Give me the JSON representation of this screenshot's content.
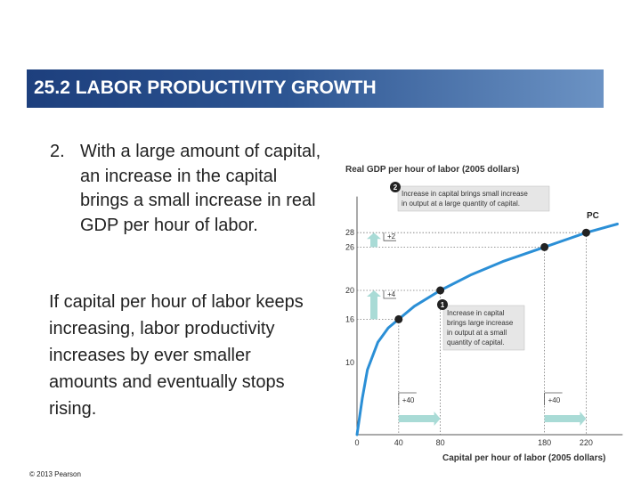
{
  "header": {
    "title": "25.2  LABOR PRODUCTIVITY GROWTH"
  },
  "main": {
    "point_number": "2.",
    "point_text": "With a large amount of capital, an increase in the capital brings a small increase in real GDP per hour of labor.",
    "paragraph": "If capital per hour of labor keeps increasing, labor productivity increases by ever smaller amounts and eventually stops rising."
  },
  "footer": {
    "copyright": "© 2013 Pearson"
  },
  "chart_data": {
    "type": "line",
    "ylabel": "Real GDP per hour of labor (2005 dollars)",
    "xlabel": "Capital per hour of labor (2005 dollars)",
    "x_ticks": [
      "0",
      "40",
      "80",
      "180",
      "220"
    ],
    "y_ticks": [
      "10",
      "16",
      "20",
      "26",
      "28"
    ],
    "xlim": [
      0,
      255
    ],
    "ylim": [
      0,
      34
    ],
    "series": [
      {
        "name": "PC",
        "x": [
          0,
          5,
          10,
          20,
          30,
          40,
          55,
          80,
          110,
          140,
          180,
          220,
          250
        ],
        "y": [
          0,
          5,
          9,
          12.8,
          14.8,
          16,
          17.8,
          20,
          22.2,
          24,
          26,
          28,
          29.2
        ]
      }
    ],
    "highlight_points": [
      {
        "x": 40,
        "y": 16
      },
      {
        "x": 80,
        "y": 20
      },
      {
        "x": 180,
        "y": 26
      },
      {
        "x": 220,
        "y": 28
      }
    ],
    "markers": [
      {
        "number": "1",
        "text": [
          "Increase in capital",
          "brings large increase",
          "in output at a small",
          "quantity of capital."
        ]
      },
      {
        "number": "2",
        "text": [
          "Increase in capital brings small increase",
          "in output at a large quantity of capital."
        ]
      }
    ],
    "changes": {
      "y_small": "+4",
      "y_large": "+2",
      "x_small": "+40",
      "x_large": "+40"
    },
    "colors": {
      "curve": "#2b8fd6",
      "point": "#222222",
      "arrow": "#a9dbd6",
      "title_bar": "#2d5592"
    },
    "grid": false
  }
}
